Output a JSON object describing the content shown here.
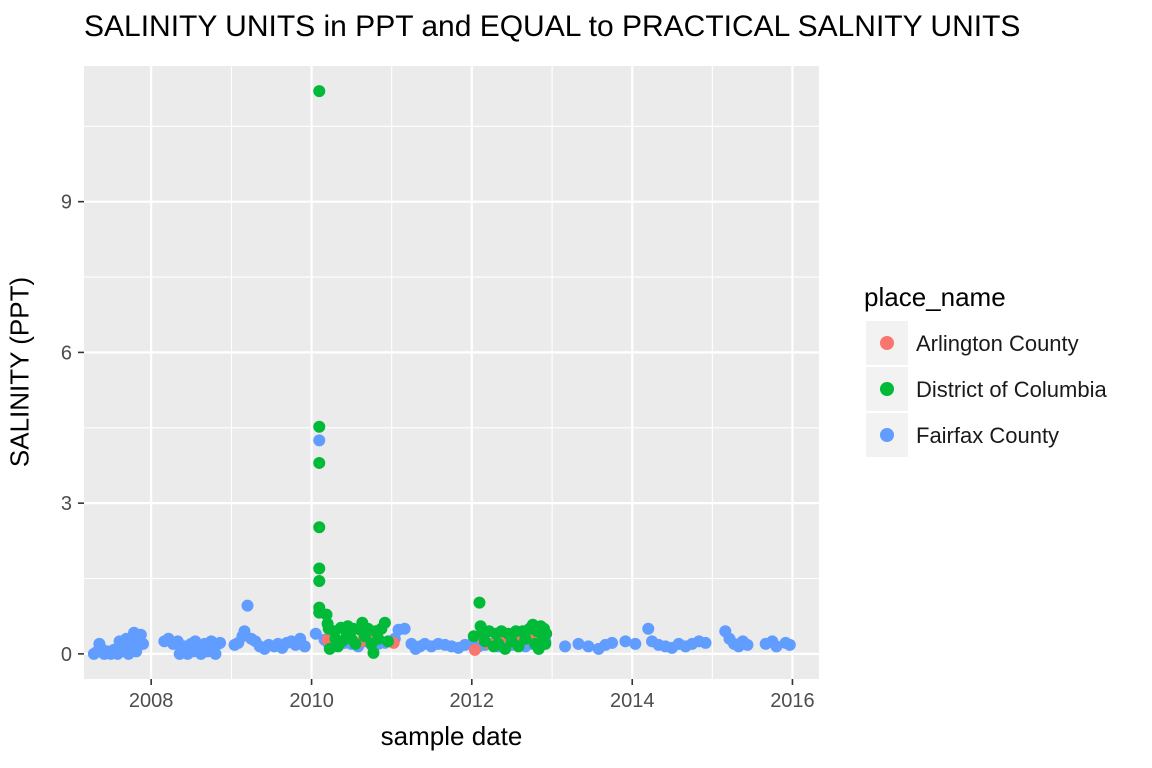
{
  "chart_data": {
    "type": "scatter",
    "title": "SALINITY UNITS in PPT and EQUAL to PRACTICAL SALNITY UNITS",
    "xlabel": "sample date",
    "ylabel": "SALINITY (PPT)",
    "xlim": [
      "2007-03-01",
      "2016-05-01"
    ],
    "ylim": [
      -0.5,
      11.7
    ],
    "x_ticks": [
      "2008",
      "2010",
      "2012",
      "2014",
      "2016"
    ],
    "y_ticks": [
      "0",
      "3",
      "6",
      "9"
    ],
    "grid": true,
    "legend": {
      "title": "place_name",
      "placement": "right"
    },
    "series": [
      {
        "name": "Arlington County",
        "color": "#F8766D",
        "points": [
          [
            "2010-03-15",
            0.28
          ],
          [
            "2010-06-20",
            0.32
          ],
          [
            "2010-08-15",
            0.25
          ],
          [
            "2010-10-01",
            0.38
          ],
          [
            "2010-10-20",
            0.3
          ],
          [
            "2011-01-10",
            0.22
          ],
          [
            "2012-01-15",
            0.08
          ],
          [
            "2012-02-20",
            0.3
          ],
          [
            "2012-03-10",
            0.22
          ],
          [
            "2012-04-20",
            0.2
          ],
          [
            "2012-06-01",
            0.35
          ],
          [
            "2012-07-15",
            0.28
          ],
          [
            "2012-09-01",
            0.3
          ],
          [
            "2012-10-10",
            0.38
          ],
          [
            "2012-10-20",
            0.3
          ],
          [
            "2012-10-25",
            0.2
          ],
          [
            "2012-11-01",
            0.12
          ]
        ]
      },
      {
        "name": "District of Columbia",
        "color": "#00BA38",
        "points": [
          [
            "2010-02-05",
            11.2
          ],
          [
            "2010-02-05",
            4.52
          ],
          [
            "2010-02-05",
            3.8
          ],
          [
            "2010-02-05",
            2.52
          ],
          [
            "2010-02-05",
            1.7
          ],
          [
            "2010-02-05",
            1.45
          ],
          [
            "2010-02-05",
            0.92
          ],
          [
            "2010-02-05",
            0.82
          ],
          [
            "2010-03-10",
            0.78
          ],
          [
            "2010-03-15",
            0.6
          ],
          [
            "2010-03-20",
            0.5
          ],
          [
            "2010-03-25",
            0.1
          ],
          [
            "2010-04-15",
            0.45
          ],
          [
            "2010-04-20",
            0.3
          ],
          [
            "2010-05-01",
            0.15
          ],
          [
            "2010-05-15",
            0.52
          ],
          [
            "2010-05-20",
            0.25
          ],
          [
            "2010-06-10",
            0.4
          ],
          [
            "2010-06-15",
            0.55
          ],
          [
            "2010-07-01",
            0.3
          ],
          [
            "2010-07-10",
            0.5
          ],
          [
            "2010-07-20",
            0.2
          ],
          [
            "2010-08-10",
            0.48
          ],
          [
            "2010-08-20",
            0.62
          ],
          [
            "2010-09-01",
            0.35
          ],
          [
            "2010-09-15",
            0.5
          ],
          [
            "2010-10-01",
            0.2
          ],
          [
            "2010-10-10",
            0.02
          ],
          [
            "2010-10-20",
            0.45
          ],
          [
            "2010-11-01",
            0.3
          ],
          [
            "2010-11-15",
            0.5
          ],
          [
            "2010-12-01",
            0.62
          ],
          [
            "2010-12-15",
            0.25
          ],
          [
            "2012-01-10",
            0.35
          ],
          [
            "2012-02-05",
            1.02
          ],
          [
            "2012-02-10",
            0.55
          ],
          [
            "2012-02-20",
            0.4
          ],
          [
            "2012-03-01",
            0.25
          ],
          [
            "2012-03-20",
            0.45
          ],
          [
            "2012-04-10",
            0.15
          ],
          [
            "2012-04-20",
            0.4
          ],
          [
            "2012-05-01",
            0.2
          ],
          [
            "2012-05-15",
            0.45
          ],
          [
            "2012-06-01",
            0.1
          ],
          [
            "2012-06-15",
            0.4
          ],
          [
            "2012-07-01",
            0.25
          ],
          [
            "2012-07-20",
            0.45
          ],
          [
            "2012-08-01",
            0.15
          ],
          [
            "2012-08-20",
            0.45
          ],
          [
            "2012-09-01",
            0.3
          ],
          [
            "2012-09-20",
            0.5
          ],
          [
            "2012-10-05",
            0.58
          ],
          [
            "2012-10-15",
            0.2
          ],
          [
            "2012-10-25",
            0.45
          ],
          [
            "2012-11-01",
            0.1
          ],
          [
            "2012-11-10",
            0.55
          ],
          [
            "2012-11-20",
            0.35
          ],
          [
            "2012-11-25",
            0.5
          ],
          [
            "2012-12-01",
            0.2
          ],
          [
            "2012-12-05",
            0.4
          ]
        ]
      },
      {
        "name": "Fairfax County",
        "color": "#619CFF",
        "points": [
          [
            "2007-04-15",
            0.0
          ],
          [
            "2007-05-01",
            0.05
          ],
          [
            "2007-05-10",
            0.2
          ],
          [
            "2007-05-20",
            0.1
          ],
          [
            "2007-06-01",
            0.0
          ],
          [
            "2007-06-15",
            0.05
          ],
          [
            "2007-07-01",
            0.0
          ],
          [
            "2007-07-15",
            0.08
          ],
          [
            "2007-08-01",
            0.0
          ],
          [
            "2007-08-10",
            0.25
          ],
          [
            "2007-08-20",
            0.15
          ],
          [
            "2007-09-01",
            0.05
          ],
          [
            "2007-09-10",
            0.3
          ],
          [
            "2007-09-20",
            0.0
          ],
          [
            "2007-10-01",
            0.2
          ],
          [
            "2007-10-10",
            0.1
          ],
          [
            "2007-10-15",
            0.42
          ],
          [
            "2007-10-25",
            0.05
          ],
          [
            "2007-11-01",
            0.3
          ],
          [
            "2007-11-15",
            0.38
          ],
          [
            "2007-11-25",
            0.2
          ],
          [
            "2008-03-01",
            0.25
          ],
          [
            "2008-03-20",
            0.3
          ],
          [
            "2008-04-10",
            0.2
          ],
          [
            "2008-05-01",
            0.25
          ],
          [
            "2008-05-10",
            0.0
          ],
          [
            "2008-05-20",
            0.1
          ],
          [
            "2008-06-01",
            0.15
          ],
          [
            "2008-06-15",
            0.0
          ],
          [
            "2008-07-01",
            0.2
          ],
          [
            "2008-07-10",
            0.05
          ],
          [
            "2008-07-20",
            0.25
          ],
          [
            "2008-08-01",
            0.1
          ],
          [
            "2008-08-15",
            0.0
          ],
          [
            "2008-09-01",
            0.2
          ],
          [
            "2008-09-15",
            0.05
          ],
          [
            "2008-10-01",
            0.25
          ],
          [
            "2008-10-10",
            0.15
          ],
          [
            "2008-10-20",
            0.0
          ],
          [
            "2008-11-01",
            0.2
          ],
          [
            "2008-11-10",
            0.22
          ],
          [
            "2009-01-15",
            0.18
          ],
          [
            "2009-02-01",
            0.22
          ],
          [
            "2009-02-20",
            0.35
          ],
          [
            "2009-03-01",
            0.45
          ],
          [
            "2009-03-15",
            0.96
          ],
          [
            "2009-04-01",
            0.3
          ],
          [
            "2009-04-20",
            0.25
          ],
          [
            "2009-05-10",
            0.15
          ],
          [
            "2009-06-01",
            0.1
          ],
          [
            "2009-06-20",
            0.18
          ],
          [
            "2009-07-15",
            0.15
          ],
          [
            "2009-08-01",
            0.2
          ],
          [
            "2009-08-20",
            0.12
          ],
          [
            "2009-09-10",
            0.22
          ],
          [
            "2009-10-01",
            0.25
          ],
          [
            "2009-10-20",
            0.18
          ],
          [
            "2009-11-10",
            0.3
          ],
          [
            "2009-12-01",
            0.15
          ],
          [
            "2010-01-20",
            0.4
          ],
          [
            "2010-02-05",
            4.25
          ],
          [
            "2010-03-01",
            0.28
          ],
          [
            "2010-03-20",
            0.2
          ],
          [
            "2010-04-10",
            0.25
          ],
          [
            "2010-05-01",
            0.18
          ],
          [
            "2010-06-01",
            0.22
          ],
          [
            "2010-07-01",
            0.2
          ],
          [
            "2010-08-01",
            0.15
          ],
          [
            "2010-09-01",
            0.25
          ],
          [
            "2010-10-01",
            0.18
          ],
          [
            "2010-11-01",
            0.2
          ],
          [
            "2010-12-01",
            0.22
          ],
          [
            "2011-01-15",
            0.3
          ],
          [
            "2011-02-01",
            0.48
          ],
          [
            "2011-03-01",
            0.5
          ],
          [
            "2011-04-01",
            0.2
          ],
          [
            "2011-04-20",
            0.1
          ],
          [
            "2011-05-10",
            0.15
          ],
          [
            "2011-06-01",
            0.2
          ],
          [
            "2011-07-01",
            0.15
          ],
          [
            "2011-08-01",
            0.2
          ],
          [
            "2011-09-01",
            0.18
          ],
          [
            "2011-10-01",
            0.15
          ],
          [
            "2011-11-01",
            0.12
          ],
          [
            "2011-12-01",
            0.18
          ],
          [
            "2012-01-01",
            0.2
          ],
          [
            "2012-02-01",
            0.15
          ],
          [
            "2012-03-01",
            0.18
          ],
          [
            "2012-04-01",
            0.2
          ],
          [
            "2012-05-01",
            0.15
          ],
          [
            "2012-06-01",
            0.22
          ],
          [
            "2012-07-01",
            0.18
          ],
          [
            "2012-08-01",
            0.2
          ],
          [
            "2012-09-01",
            0.15
          ],
          [
            "2012-10-01",
            0.2
          ],
          [
            "2012-11-01",
            0.18
          ],
          [
            "2012-12-01",
            0.25
          ],
          [
            "2013-03-01",
            0.15
          ],
          [
            "2013-05-01",
            0.2
          ],
          [
            "2013-06-15",
            0.15
          ],
          [
            "2013-08-01",
            0.1
          ],
          [
            "2013-09-01",
            0.18
          ],
          [
            "2013-10-01",
            0.22
          ],
          [
            "2013-12-01",
            0.25
          ],
          [
            "2014-01-15",
            0.2
          ],
          [
            "2014-03-15",
            0.5
          ],
          [
            "2014-04-01",
            0.25
          ],
          [
            "2014-05-01",
            0.18
          ],
          [
            "2014-06-01",
            0.15
          ],
          [
            "2014-07-01",
            0.12
          ],
          [
            "2014-08-01",
            0.2
          ],
          [
            "2014-09-01",
            0.15
          ],
          [
            "2014-10-01",
            0.2
          ],
          [
            "2014-11-01",
            0.25
          ],
          [
            "2014-12-01",
            0.22
          ],
          [
            "2015-03-01",
            0.45
          ],
          [
            "2015-03-20",
            0.3
          ],
          [
            "2015-04-10",
            0.2
          ],
          [
            "2015-05-01",
            0.15
          ],
          [
            "2015-05-20",
            0.25
          ],
          [
            "2015-06-10",
            0.18
          ],
          [
            "2015-09-01",
            0.2
          ],
          [
            "2015-10-01",
            0.25
          ],
          [
            "2015-10-20",
            0.15
          ],
          [
            "2015-12-01",
            0.22
          ],
          [
            "2015-12-20",
            0.18
          ]
        ]
      }
    ]
  }
}
